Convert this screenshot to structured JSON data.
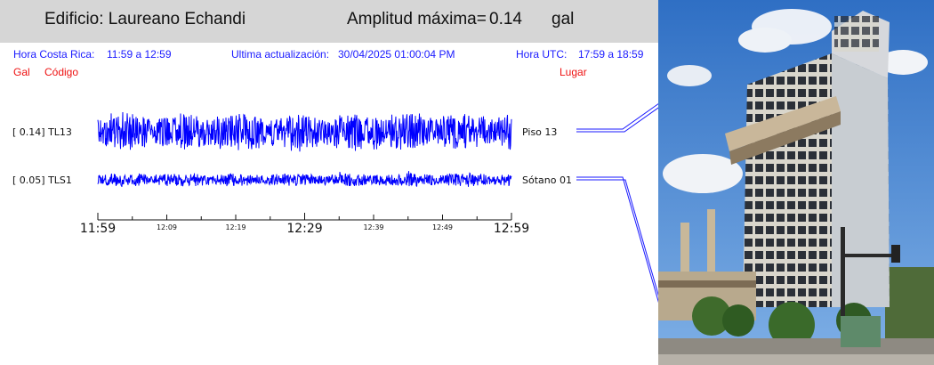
{
  "header": {
    "building": "Edificio: Laureano Echandi",
    "amplitude_label": "Amplitud máxima=",
    "amplitude_value": "0.14",
    "amplitude_unit": "gal"
  },
  "info": {
    "cr_time_label": "Hora Costa Rica:",
    "cr_time_value": "11:59 a 12:59",
    "update_label": "Ultima actualización:",
    "update_value": "30/04/2025 01:00:04 PM",
    "utc_label": "Hora UTC:",
    "utc_value": "17:59 a 18:59",
    "col_gal": "Gal",
    "col_code": "Código",
    "col_place": "Lugar"
  },
  "channels": [
    {
      "amp": "[  0.14] TL13",
      "place": "Piso 13",
      "peak_gal": 0.14
    },
    {
      "amp": "[  0.05] TLS1",
      "place": "Sótano 01",
      "peak_gal": 0.05
    }
  ],
  "time_axis": {
    "major": [
      "11:59",
      "12:29",
      "12:59"
    ],
    "minor": [
      "12:09",
      "12:19",
      "12:39",
      "12:49"
    ]
  },
  "colors": {
    "trace": "#0000ff",
    "header_bg": "#d6d6d6",
    "info_blue": "#1a1aff",
    "info_red": "#ee1111"
  }
}
